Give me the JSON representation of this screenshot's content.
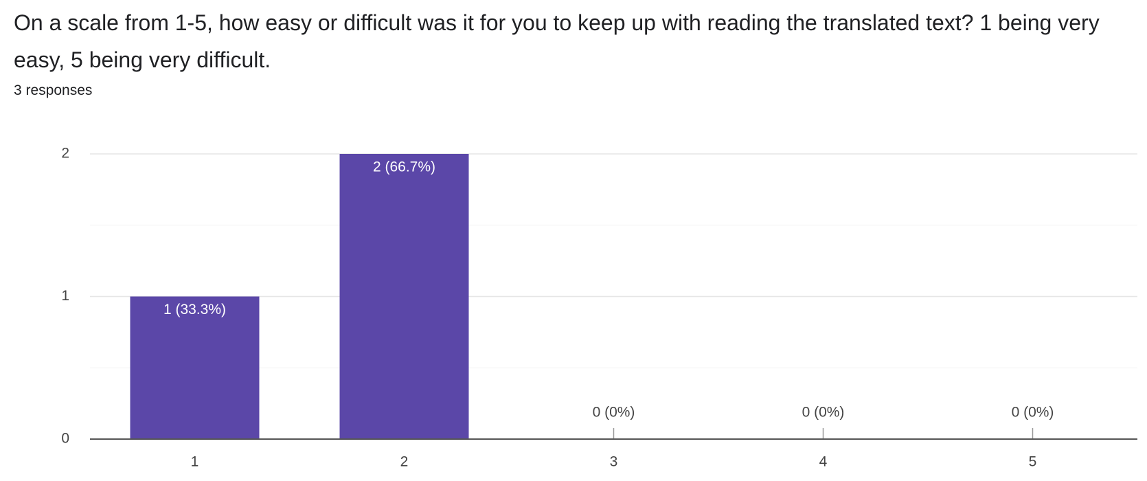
{
  "chart_data": {
    "type": "bar",
    "title": "On a scale from 1-5, how easy or difficult was it for you to keep up with reading the translated text? 1 being very easy, 5 being very difficult.",
    "subtitle": "3 responses",
    "categories": [
      "1",
      "2",
      "3",
      "4",
      "5"
    ],
    "values": [
      1,
      2,
      0,
      0,
      0
    ],
    "value_labels": [
      "1 (33.3%)",
      "2 (66.7%)",
      "0 (0%)",
      "0 (0%)",
      "0 (0%)"
    ],
    "color": "#5b47a8",
    "ylim": [
      0,
      2
    ],
    "yticks": [
      0,
      1,
      2
    ],
    "grid": true
  }
}
